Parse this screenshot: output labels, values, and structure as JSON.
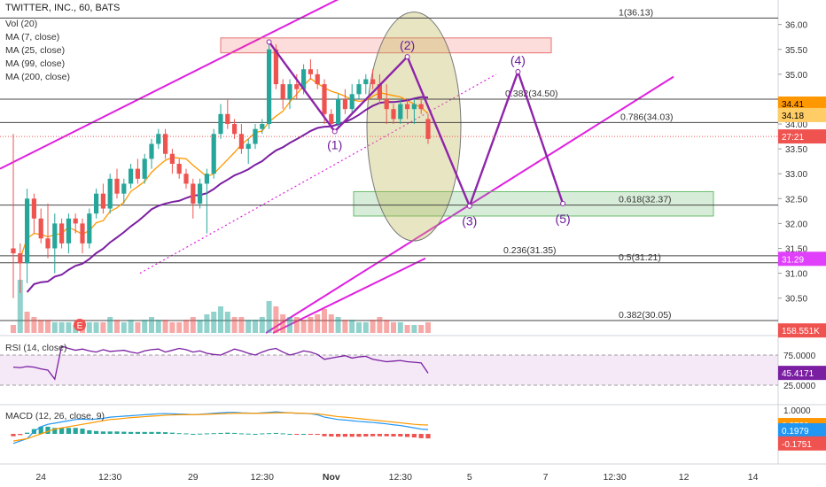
{
  "header": {
    "title": "TWITTER, INC., 60, BATS",
    "indicators": [
      "Vol (20)",
      "MA (7, close)",
      "MA (25, close)",
      "MA (99, close)",
      "MA (200, close)"
    ]
  },
  "chart_data": {
    "type": "candlestick",
    "symbol": "TWITTER, INC.",
    "interval": "60",
    "exchange": "BATS",
    "price_axis": {
      "ticks": [
        "36.00",
        "35.50",
        "35.00",
        "34.50",
        "34.00",
        "33.50",
        "33.00",
        "32.50",
        "32.00",
        "31.50",
        "31.00",
        "30.50"
      ],
      "ylim": [
        29.8,
        36.35
      ]
    },
    "time_axis": {
      "ticks": [
        "24",
        "12:30",
        "29",
        "12:30",
        "Nov",
        "12:30",
        "5",
        "7",
        "12:30",
        "12",
        "14"
      ],
      "tick_bars": [
        4,
        14,
        26,
        36,
        46,
        56,
        66,
        77,
        87,
        97,
        107
      ]
    },
    "candles": [
      [
        31.5,
        33.8,
        30.5,
        31.4
      ],
      [
        31.4,
        31.6,
        30.6,
        31.2
      ],
      [
        31.2,
        32.7,
        30.8,
        32.5
      ],
      [
        32.5,
        32.6,
        31.8,
        32.1
      ],
      [
        32.1,
        32.3,
        31.6,
        31.7
      ],
      [
        31.7,
        32.4,
        31.3,
        31.5
      ],
      [
        31.5,
        32.2,
        31.0,
        32.0
      ],
      [
        32.0,
        32.1,
        31.5,
        31.6
      ],
      [
        31.6,
        32.2,
        31.4,
        32.1
      ],
      [
        32.1,
        32.2,
        31.8,
        32.0
      ],
      [
        32.0,
        32.1,
        31.4,
        31.6
      ],
      [
        31.6,
        32.3,
        31.5,
        32.2
      ],
      [
        32.2,
        32.7,
        32.1,
        32.6
      ],
      [
        32.6,
        32.8,
        32.2,
        32.3
      ],
      [
        32.3,
        33.0,
        32.2,
        32.9
      ],
      [
        32.9,
        33.1,
        32.5,
        32.6
      ],
      [
        32.6,
        32.9,
        32.4,
        32.8
      ],
      [
        32.8,
        33.2,
        32.7,
        33.1
      ],
      [
        33.1,
        33.3,
        32.8,
        32.9
      ],
      [
        32.9,
        33.4,
        32.8,
        33.3
      ],
      [
        33.3,
        33.7,
        33.1,
        33.6
      ],
      [
        33.6,
        33.9,
        33.5,
        33.8
      ],
      [
        33.8,
        33.9,
        33.3,
        33.4
      ],
      [
        33.4,
        33.5,
        33.0,
        33.2
      ],
      [
        33.2,
        33.3,
        32.9,
        33.0
      ],
      [
        33.0,
        33.1,
        32.7,
        32.8
      ],
      [
        32.8,
        32.9,
        32.1,
        32.4
      ],
      [
        32.4,
        32.9,
        32.3,
        32.8
      ],
      [
        32.8,
        33.1,
        31.8,
        33.0
      ],
      [
        33.0,
        33.9,
        32.9,
        33.8
      ],
      [
        33.8,
        34.4,
        33.7,
        34.2
      ],
      [
        34.2,
        34.5,
        33.9,
        34.0
      ],
      [
        34.0,
        34.1,
        33.7,
        33.8
      ],
      [
        33.8,
        34.0,
        33.4,
        33.5
      ],
      [
        33.5,
        33.7,
        33.2,
        33.6
      ],
      [
        33.6,
        34.0,
        33.5,
        33.9
      ],
      [
        33.9,
        34.1,
        33.8,
        34.0
      ],
      [
        34.0,
        35.7,
        33.9,
        35.5
      ],
      [
        35.5,
        35.6,
        34.7,
        34.8
      ],
      [
        34.8,
        34.9,
        34.3,
        34.5
      ],
      [
        34.5,
        34.9,
        34.3,
        34.8
      ],
      [
        34.8,
        35.0,
        34.5,
        34.7
      ],
      [
        34.7,
        35.2,
        34.6,
        35.1
      ],
      [
        35.1,
        35.3,
        34.9,
        35.0
      ],
      [
        35.0,
        35.1,
        34.7,
        34.8
      ],
      [
        34.8,
        34.9,
        34.0,
        34.2
      ],
      [
        34.2,
        34.3,
        33.9,
        34.0
      ],
      [
        34.0,
        34.6,
        33.9,
        34.5
      ],
      [
        34.5,
        34.7,
        34.2,
        34.3
      ],
      [
        34.3,
        34.8,
        34.2,
        34.6
      ],
      [
        34.6,
        34.9,
        34.5,
        34.8
      ],
      [
        34.8,
        35.0,
        34.6,
        34.9
      ],
      [
        34.9,
        35.1,
        34.7,
        34.8
      ],
      [
        34.8,
        35.0,
        34.4,
        34.5
      ],
      [
        34.5,
        34.8,
        34.0,
        34.3
      ],
      [
        34.3,
        34.4,
        34.0,
        34.1
      ],
      [
        34.1,
        34.5,
        34.0,
        34.4
      ],
      [
        34.4,
        34.5,
        34.1,
        34.3
      ],
      [
        34.3,
        34.5,
        34.0,
        34.4
      ],
      [
        34.4,
        34.5,
        34.2,
        34.3
      ],
      [
        34.1,
        34.2,
        33.6,
        33.7
      ]
    ],
    "volume": [
      3,
      20,
      8,
      6,
      5,
      5,
      4,
      4,
      4,
      3,
      5,
      4,
      4,
      4,
      6,
      5,
      4,
      5,
      4,
      5,
      6,
      5,
      5,
      4,
      4,
      5,
      6,
      5,
      7,
      8,
      10,
      8,
      6,
      6,
      5,
      5,
      6,
      12,
      10,
      7,
      6,
      6,
      5,
      6,
      7,
      9,
      7,
      6,
      5,
      5,
      4,
      4,
      5,
      6,
      5,
      4,
      4,
      3,
      3,
      3,
      4
    ],
    "volume_colors": [
      0,
      1,
      0,
      0,
      0,
      0,
      1,
      1,
      1,
      1,
      0,
      1,
      1,
      0,
      1,
      0,
      1,
      1,
      0,
      1,
      1,
      1,
      0,
      0,
      0,
      0,
      0,
      1,
      1,
      1,
      1,
      1,
      0,
      0,
      1,
      1,
      1,
      1,
      0,
      0,
      1,
      0,
      0,
      0,
      0,
      0,
      0,
      1,
      0,
      1,
      1,
      1,
      0,
      0,
      0,
      0,
      1,
      0,
      1,
      0,
      0
    ],
    "fib_levels": [
      {
        "label": "1(36.13)",
        "price": 36.13
      },
      {
        "label": "0.382(34.50)",
        "price": 34.5
      },
      {
        "label": "0.786(34.03)",
        "price": 34.03
      },
      {
        "label": "0.618(32.37)",
        "price": 32.37
      },
      {
        "label": "0.236(31.35)",
        "price": 31.35
      },
      {
        "label": "0.5(31.21)",
        "price": 31.21
      },
      {
        "label": "0.382(30.05)",
        "price": 30.05
      }
    ],
    "wave_labels": [
      "(1)",
      "(2)",
      "(3)",
      "(4)",
      "(5)"
    ],
    "wave_points": [
      [
        37,
        35.65
      ],
      [
        46.5,
        33.85
      ],
      [
        57,
        35.35
      ],
      [
        66,
        32.35
      ],
      [
        73,
        35.05
      ],
      [
        79.5,
        32.4
      ]
    ],
    "extra_markers": [
      "E"
    ],
    "price_labels": [
      {
        "text": "34.41",
        "bg": "#ff9800",
        "fg": "#000000",
        "price": 34.41
      },
      {
        "text": "34.18",
        "bg": "#ffcc66",
        "fg": "#000000",
        "price": 34.18
      },
      {
        "text": "27:21",
        "bg": "#ef5350",
        "fg": "#ffffff",
        "price": 33.75
      },
      {
        "text": "31.29",
        "bg": "#e040fb",
        "fg": "#ffffff",
        "price": 31.29
      },
      {
        "text": "158.551K",
        "bg": "#ef5350",
        "fg": "#ffffff",
        "price": 29.85
      }
    ],
    "rsi": {
      "label": "RSI (14, close)",
      "ticks": [
        "75.0000",
        "25.0000"
      ],
      "value_label": "45.4171",
      "values": [
        55,
        54,
        56,
        55,
        52,
        50,
        35,
        90,
        86,
        83,
        85,
        82,
        80,
        84,
        81,
        82,
        83,
        80,
        78,
        82,
        84,
        85,
        80,
        83,
        86,
        84,
        80,
        82,
        78,
        76,
        75,
        80,
        85,
        82,
        78,
        75,
        80,
        84,
        86,
        80,
        75,
        78,
        82,
        80,
        76,
        68,
        70,
        72,
        74,
        70,
        72,
        73,
        68,
        66,
        64,
        65,
        66,
        64,
        63,
        62,
        45
      ]
    },
    "macd": {
      "label": "MACD (12, 26, close, 9)",
      "ticks": [
        "1.0000"
      ],
      "value_labels": [
        "0.3730",
        "0.1979",
        "-0.1751"
      ],
      "macd_line": [
        -0.4,
        -0.3,
        -0.2,
        0.1,
        0.3,
        0.4,
        0.45,
        0.5,
        0.55,
        0.6,
        0.62,
        0.6,
        0.62,
        0.65,
        0.7,
        0.72,
        0.74,
        0.76,
        0.78,
        0.8,
        0.82,
        0.84,
        0.85,
        0.84,
        0.83,
        0.82,
        0.8,
        0.82,
        0.84,
        0.86,
        0.88,
        0.9,
        0.9,
        0.88,
        0.87,
        0.86,
        0.88,
        0.9,
        0.92,
        0.9,
        0.88,
        0.86,
        0.86,
        0.84,
        0.8,
        0.7,
        0.65,
        0.6,
        0.58,
        0.55,
        0.52,
        0.5,
        0.48,
        0.45,
        0.42,
        0.38,
        0.35,
        0.3,
        0.25,
        0.2,
        0.18
      ],
      "signal_line": [
        -0.3,
        -0.25,
        -0.2,
        -0.1,
        0.0,
        0.1,
        0.2,
        0.25,
        0.3,
        0.35,
        0.4,
        0.45,
        0.5,
        0.55,
        0.6,
        0.62,
        0.65,
        0.68,
        0.7,
        0.72,
        0.74,
        0.76,
        0.78,
        0.79,
        0.8,
        0.8,
        0.8,
        0.81,
        0.82,
        0.83,
        0.84,
        0.85,
        0.86,
        0.86,
        0.86,
        0.86,
        0.86,
        0.87,
        0.88,
        0.88,
        0.88,
        0.87,
        0.86,
        0.85,
        0.84,
        0.8,
        0.76,
        0.72,
        0.7,
        0.67,
        0.64,
        0.61,
        0.58,
        0.55,
        0.52,
        0.49,
        0.46,
        0.43,
        0.4,
        0.38,
        0.37
      ],
      "histogram": [
        -0.1,
        -0.05,
        0.05,
        0.2,
        0.3,
        0.3,
        0.25,
        0.25,
        0.25,
        0.25,
        0.22,
        0.15,
        0.12,
        0.1,
        0.1,
        0.1,
        0.09,
        0.08,
        0.08,
        0.08,
        0.08,
        0.08,
        0.07,
        0.05,
        0.03,
        0.02,
        0.0,
        0.01,
        0.02,
        0.03,
        0.04,
        0.05,
        0.04,
        0.02,
        0.01,
        0.0,
        0.02,
        0.03,
        0.04,
        0.02,
        0.0,
        -0.01,
        0.0,
        -0.01,
        -0.04,
        -0.1,
        -0.11,
        -0.12,
        -0.12,
        -0.12,
        -0.12,
        -0.11,
        -0.1,
        -0.1,
        -0.1,
        -0.11,
        -0.11,
        -0.13,
        -0.15,
        -0.18,
        -0.19
      ]
    }
  }
}
